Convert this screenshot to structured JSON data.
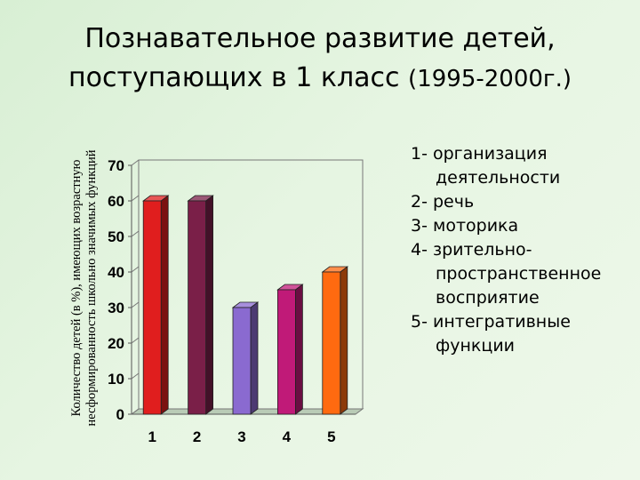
{
  "title": {
    "line1": "Познавательное развитие детей,",
    "line2_main": "поступающих в 1 класс",
    "line2_years": "(1995-2000г.)"
  },
  "chart_data": {
    "type": "bar",
    "title": "Познавательное развитие детей, поступающих в 1 класс (1995-2000г.)",
    "ylabel": "Количество детей (в %), имеющих возрастную несформированность школьно значимых функций",
    "xlabel": "",
    "categories": [
      "1",
      "2",
      "3",
      "4",
      "5"
    ],
    "values": [
      60,
      60,
      30,
      35,
      40
    ],
    "colors": [
      "#e01e1e",
      "#7a1f48",
      "#8a6ad0",
      "#c01a78",
      "#ff6a10"
    ],
    "yticks": [
      "0",
      "10",
      "20",
      "30",
      "40",
      "50",
      "60",
      "70"
    ],
    "ylim": [
      0,
      70
    ],
    "grid": false,
    "legend_position": "right"
  },
  "legend": [
    "1- организация деятельности",
    "2- речь",
    "3- моторика",
    "4- зрительно-пространственное восприятие",
    "5- интегративные функции"
  ]
}
